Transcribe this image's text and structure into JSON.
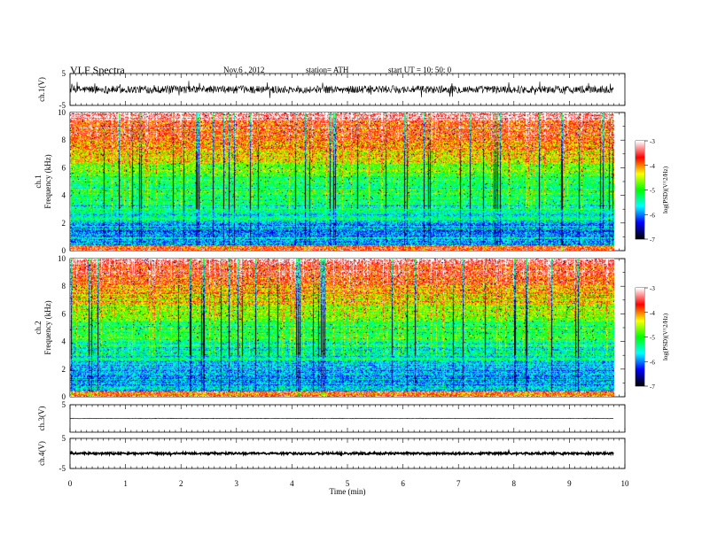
{
  "header": {
    "title": "VLF  Spectra",
    "date": "Nov.6  , 2012",
    "station": "station= ATH",
    "start": "start  UT  =    10: 50: 0"
  },
  "chart_data": [
    {
      "type": "line",
      "name": "waveform-ch1",
      "ylabel": "ch.1(V)",
      "ylim": [
        -5,
        5
      ],
      "yticks": [
        "5",
        "-5"
      ],
      "xlim": [
        0,
        10
      ],
      "baseline": 0,
      "amplitude": 1.2,
      "color": "#000000"
    },
    {
      "type": "heatmap",
      "name": "spectrogram-ch1",
      "ylabel": "ch.1\nFrequency  (kHz)",
      "ylim": [
        0,
        10
      ],
      "yticks": [
        "0",
        "2",
        "4",
        "6",
        "8",
        "10"
      ],
      "xlim": [
        0,
        9.8
      ],
      "colorbar": {
        "label": "log(PSD)(V^2/Hz)",
        "ticks": [
          "-3",
          "-4",
          "-5",
          "-6",
          "-7"
        ],
        "range": [
          -7,
          -3
        ]
      }
    },
    {
      "type": "heatmap",
      "name": "spectrogram-ch2",
      "ylabel": "ch.2\nFrequency  (kHz)",
      "ylim": [
        0,
        10
      ],
      "yticks": [
        "0",
        "2",
        "4",
        "6",
        "8",
        "10"
      ],
      "xlim": [
        0,
        9.8
      ],
      "colorbar": {
        "label": "log(PSD)(V^2/Hz)",
        "ticks": [
          "-3",
          "-4",
          "-5",
          "-6",
          "-7"
        ],
        "range": [
          -7,
          -3
        ]
      }
    },
    {
      "type": "line",
      "name": "waveform-ch3",
      "ylabel": "ch.3(V)",
      "ylim": [
        -5,
        5
      ],
      "yticks": [
        "5"
      ],
      "xlim": [
        0,
        10
      ],
      "baseline": 0,
      "amplitude": 0.1,
      "color": "#000000"
    },
    {
      "type": "line",
      "name": "waveform-ch4",
      "ylabel": "ch.4(V)",
      "ylim": [
        -5,
        5
      ],
      "yticks": [
        "5",
        "-5"
      ],
      "xlim": [
        0,
        10
      ],
      "baseline": 0,
      "amplitude": 0.35,
      "color": "#000000"
    }
  ],
  "xaxis": {
    "label": "Time  (min)",
    "ticks": [
      "0",
      "1",
      "2",
      "3",
      "4",
      "5",
      "6",
      "7",
      "8",
      "9",
      "10"
    ],
    "range": [
      0,
      10
    ]
  },
  "colormap": [
    "#000000",
    "#0000ff",
    "#00ffff",
    "#00ff00",
    "#ffff00",
    "#ff0000",
    "#ffffff"
  ]
}
